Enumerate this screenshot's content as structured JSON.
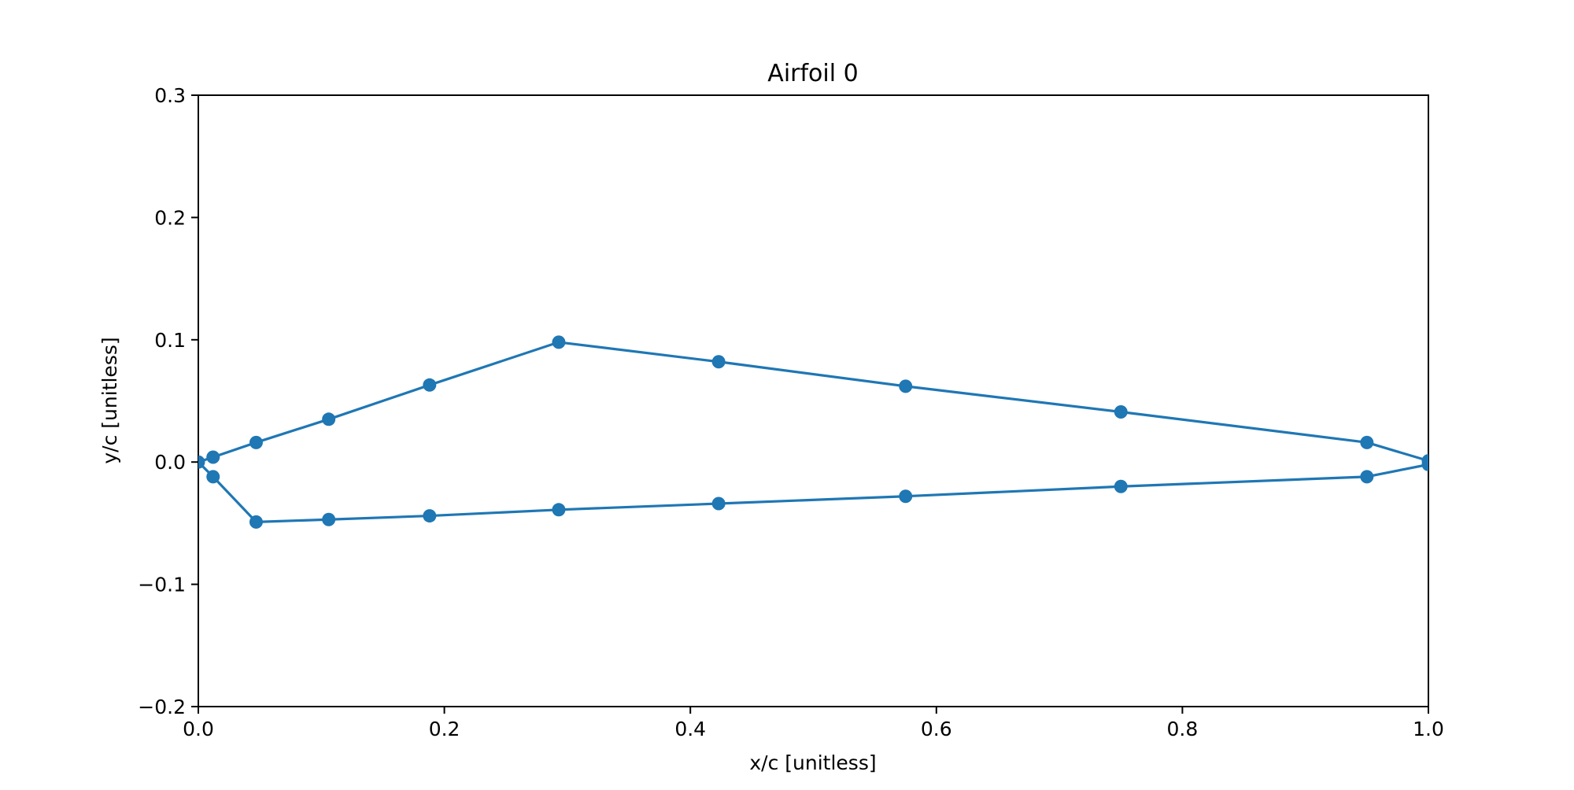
{
  "chart_data": {
    "type": "line",
    "title": "Airfoil 0",
    "xlabel": "x/c [unitless]",
    "ylabel": "y/c [unitless]",
    "xlim": [
      0.0,
      1.0
    ],
    "ylim": [
      -0.2,
      0.3
    ],
    "x_ticks": [
      0.0,
      0.2,
      0.4,
      0.6,
      0.8,
      1.0
    ],
    "x_tick_labels": [
      "0.0",
      "0.2",
      "0.4",
      "0.6",
      "0.8",
      "1.0"
    ],
    "y_ticks": [
      -0.2,
      -0.1,
      0.0,
      0.1,
      0.2,
      0.3
    ],
    "y_tick_labels": [
      "−0.2",
      "−0.1",
      "0.0",
      "0.1",
      "0.2",
      "0.3"
    ],
    "grid": false,
    "series": [
      {
        "color": "#1f77b4",
        "marker": "circle",
        "x": [
          1.0,
          0.95,
          0.75,
          0.575,
          0.423,
          0.293,
          0.188,
          0.106,
          0.047,
          0.012,
          0.0,
          0.012,
          0.047,
          0.106,
          0.188,
          0.293,
          0.423,
          0.575,
          0.75,
          0.95,
          1.0
        ],
        "y": [
          0.001,
          0.016,
          0.041,
          0.062,
          0.082,
          0.098,
          0.063,
          0.035,
          0.016,
          0.004,
          0.0,
          -0.012,
          -0.049,
          -0.047,
          -0.044,
          -0.039,
          -0.034,
          -0.028,
          -0.02,
          -0.012,
          -0.002
        ]
      }
    ]
  }
}
